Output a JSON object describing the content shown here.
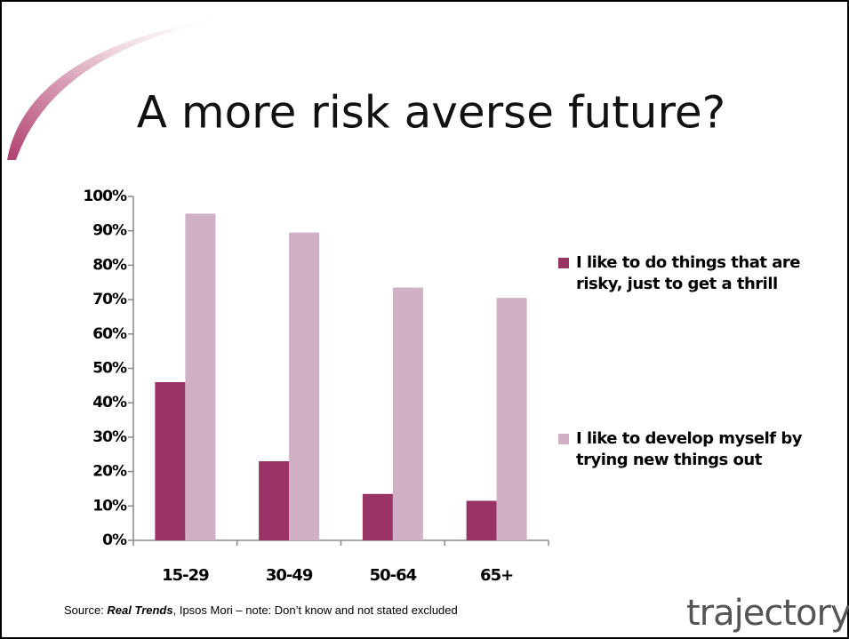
{
  "chart_data": {
    "type": "bar",
    "title": "A more risk averse future?",
    "categories": [
      "15-29",
      "30-49",
      "50-64",
      "65+"
    ],
    "series": [
      {
        "name": "I like to do things that are risky, just to get a thrill",
        "color": "#993366",
        "values": [
          46,
          23,
          13.5,
          11.5
        ]
      },
      {
        "name": "I like to develop myself by trying new things out",
        "color": "#cfb0c5",
        "values": [
          95,
          89.5,
          73.5,
          70.5
        ]
      }
    ],
    "ylim": [
      0,
      100
    ],
    "yticks": [
      {
        "value": 0,
        "label": "0%"
      },
      {
        "value": 10,
        "label": "10%"
      },
      {
        "value": 20,
        "label": "20%"
      },
      {
        "value": 30,
        "label": "30%"
      },
      {
        "value": 40,
        "label": "40%"
      },
      {
        "value": 50,
        "label": "50%"
      },
      {
        "value": 60,
        "label": "60%"
      },
      {
        "value": 70,
        "label": "70%"
      },
      {
        "value": 80,
        "label": "80%"
      },
      {
        "value": 90,
        "label": "90%"
      },
      {
        "value": 100,
        "label": "100%"
      }
    ],
    "grid": false,
    "legend": "right"
  },
  "source_note": {
    "prefix": "Source: ",
    "emphasis": "Real Trends",
    "suffix": ", Ipsos Mori  – note: Don’t know and not stated excluded"
  },
  "logo": "trajectory"
}
